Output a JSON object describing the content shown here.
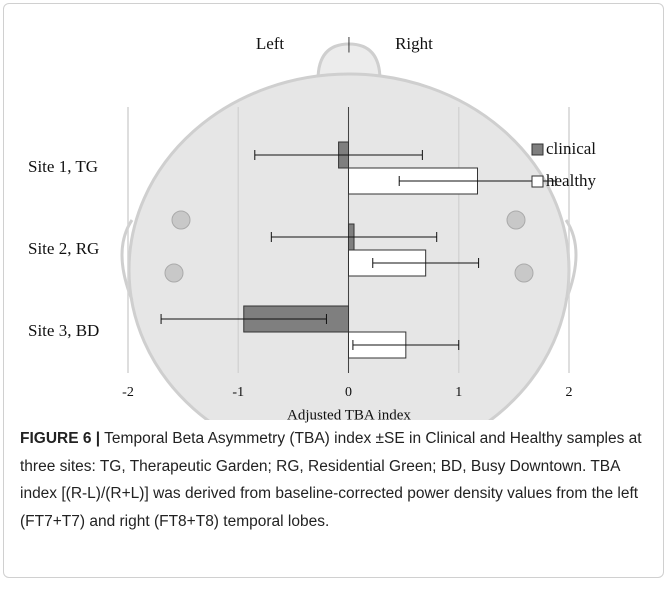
{
  "chart_data": {
    "type": "hbar_error",
    "annotations": [
      "Left",
      "|",
      "Right"
    ],
    "xlabel": "Adjusted TBA index",
    "categories": [
      "Site 1, TG",
      "Site 2, RG",
      "Site 3, BD"
    ],
    "series": [
      {
        "name": "clinical",
        "color": "#7f7f7f",
        "values": [
          -0.09,
          0.05,
          -0.95
        ],
        "errors": [
          0.76,
          0.75,
          0.75
        ]
      },
      {
        "name": "healthy",
        "color": "#ffffff",
        "values": [
          1.17,
          0.7,
          0.52
        ],
        "errors": [
          0.71,
          0.48,
          0.48
        ]
      }
    ],
    "xlim": [
      -2,
      2
    ],
    "xticks": [
      -2,
      -1,
      0,
      1,
      2
    ],
    "grid": true
  },
  "caption": {
    "label": "FIGURE 6 |",
    "text": "Temporal Beta Asymmetry (TBA) index ±SE in Clinical and Healthy samples at three sites: TG, Therapeutic Garden; RG, Residential Green; BD, Busy Downtown. TBA index [(R-L)/(R+L)] was derived from baseline-corrected power density values from the left (FT7+T7) and right (FT8+T8) temporal lobes."
  }
}
